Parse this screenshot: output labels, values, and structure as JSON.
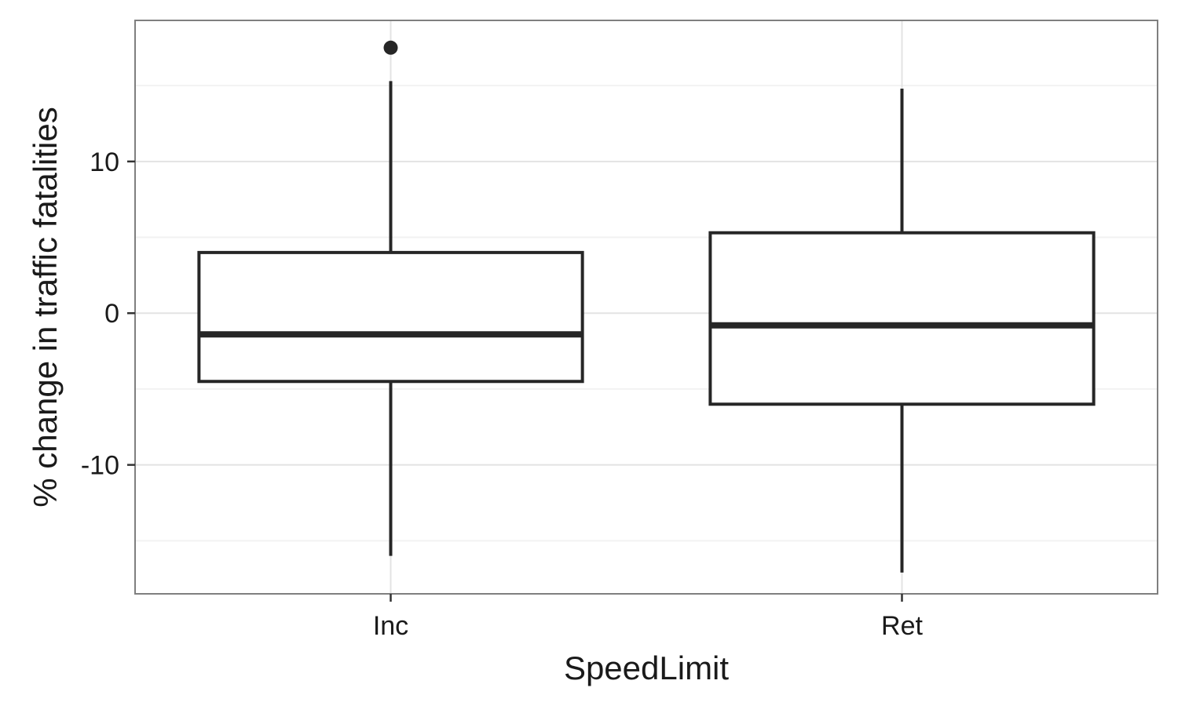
{
  "chart_data": {
    "type": "box",
    "xlabel": "SpeedLimit",
    "ylabel": "% change in traffic fatalities",
    "ylim": [
      -18.5,
      19.3
    ],
    "yticks": [
      -10,
      0,
      10
    ],
    "ytick_labels": [
      "-10",
      "0",
      "10"
    ],
    "grid": true,
    "categories": [
      "Inc",
      "Ret"
    ],
    "boxes": [
      {
        "category": "Inc",
        "whisker_low": -16.0,
        "q1": -4.5,
        "median": -1.4,
        "q3": 4.0,
        "whisker_high": 15.3,
        "outliers": [
          17.5
        ]
      },
      {
        "category": "Ret",
        "whisker_low": -17.1,
        "q1": -6.0,
        "median": -0.8,
        "q3": 5.3,
        "whisker_high": 14.8,
        "outliers": []
      }
    ],
    "colors": {
      "box_stroke": "#262626",
      "grid_major": "#e3e3e3",
      "grid_minor": "#f2f2f2",
      "panel_border": "#7f7f7f"
    }
  }
}
